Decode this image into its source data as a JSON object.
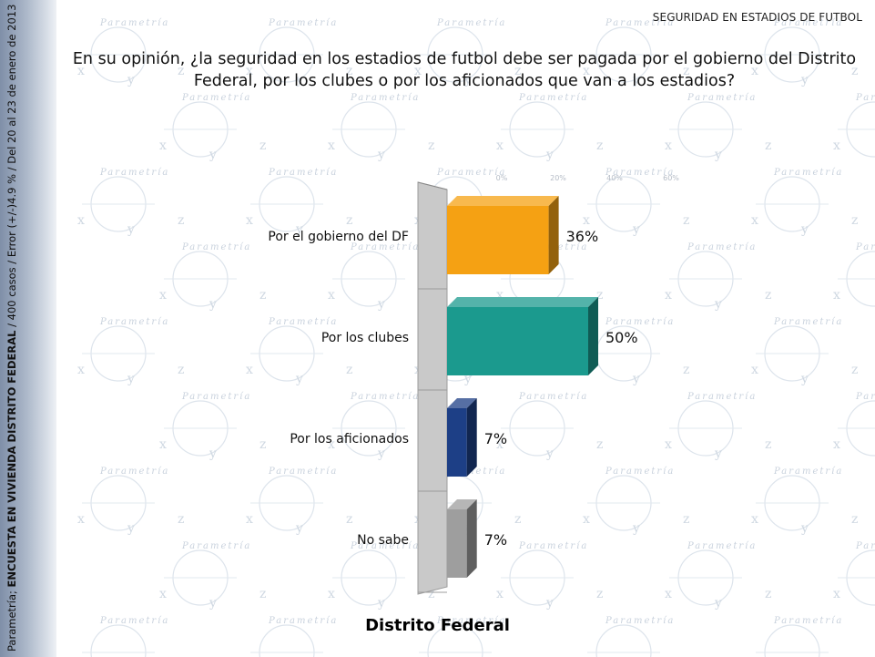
{
  "header": {
    "section_title": "SEGURIDAD EN ESTADIOS DE FUTBOL",
    "question": "En su opinión, ¿la seguridad en los estadios de futbol debe ser pagada por el gobierno del Distrito Federal, por los clubes o por los aficionados que van a los estadios?"
  },
  "sidebar": {
    "source": "Parametría;",
    "survey": "ENCUESTA EN VIVIENDA DISTRITO FEDERAL",
    "details": "/ 400 casos / Error (+/-)4.9 % / Del 20 al 23 de enero de 2013"
  },
  "watermark": {
    "brand": "Parametría",
    "letters": [
      "x",
      "y",
      "z"
    ]
  },
  "chart_data": {
    "type": "bar",
    "orientation": "horizontal",
    "categories": [
      "Por el gobierno del DF",
      "Por los clubes",
      "Por los aficionados",
      "No sabe"
    ],
    "values": [
      36,
      50,
      7,
      7
    ],
    "value_labels": [
      "36%",
      "50%",
      "7%",
      "7%"
    ],
    "unit": "%",
    "colors": [
      "#f5a113",
      "#1b9a8e",
      "#1d3f86",
      "#9e9e9e"
    ],
    "axis_ticks": [
      "0%",
      "20%",
      "40%",
      "60%"
    ],
    "xlim": [
      0,
      60
    ],
    "xlabel": "Distrito Federal",
    "style": "3d",
    "grid": false,
    "legend": "none"
  }
}
